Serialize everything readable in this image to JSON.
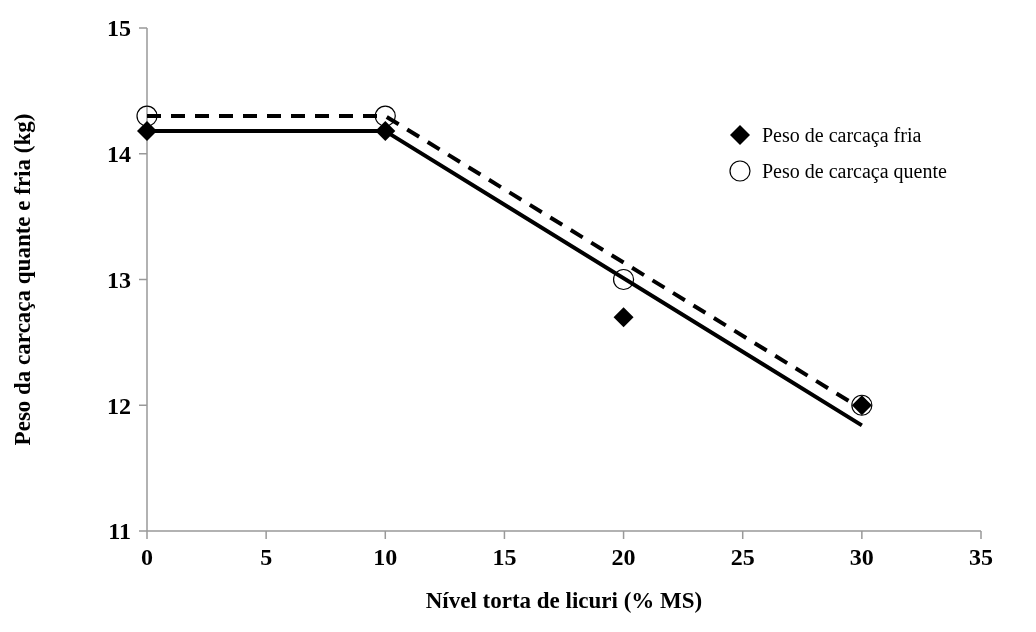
{
  "chart_data": {
    "type": "scatter",
    "xlabel": "Nível torta de licuri (% MS)",
    "ylabel": "Peso da carcaça quante e fria (kg)",
    "xlim": [
      0,
      35
    ],
    "xticks": [
      0,
      5,
      10,
      15,
      20,
      25,
      30,
      35
    ],
    "ylim": [
      11,
      15
    ],
    "yticks": [
      11,
      12,
      13,
      14,
      15
    ],
    "grid": false,
    "legend": "top right",
    "series": [
      {
        "name": "Peso de carcaça fria",
        "color": "#000000",
        "marker": "diamond",
        "x": [
          0,
          10,
          20,
          30
        ],
        "values": [
          14.18,
          14.18,
          12.7,
          12.0
        ]
      },
      {
        "name": "Peso de carcaça quente",
        "color": "#000000",
        "marker": "circle",
        "x": [
          0,
          10,
          20,
          30
        ],
        "values": [
          14.3,
          14.3,
          13.0,
          12.0
        ]
      },
      {
        "type": "line",
        "color": "#000000",
        "line_style": "solid",
        "marker": "none",
        "x": [
          0,
          10,
          30
        ],
        "values": [
          14.18,
          14.18,
          11.84
        ]
      },
      {
        "type": "line",
        "color": "#000000",
        "line_style": "dashed",
        "marker": "none",
        "x": [
          0,
          10,
          30
        ],
        "values": [
          14.3,
          14.3,
          11.97
        ]
      }
    ]
  }
}
